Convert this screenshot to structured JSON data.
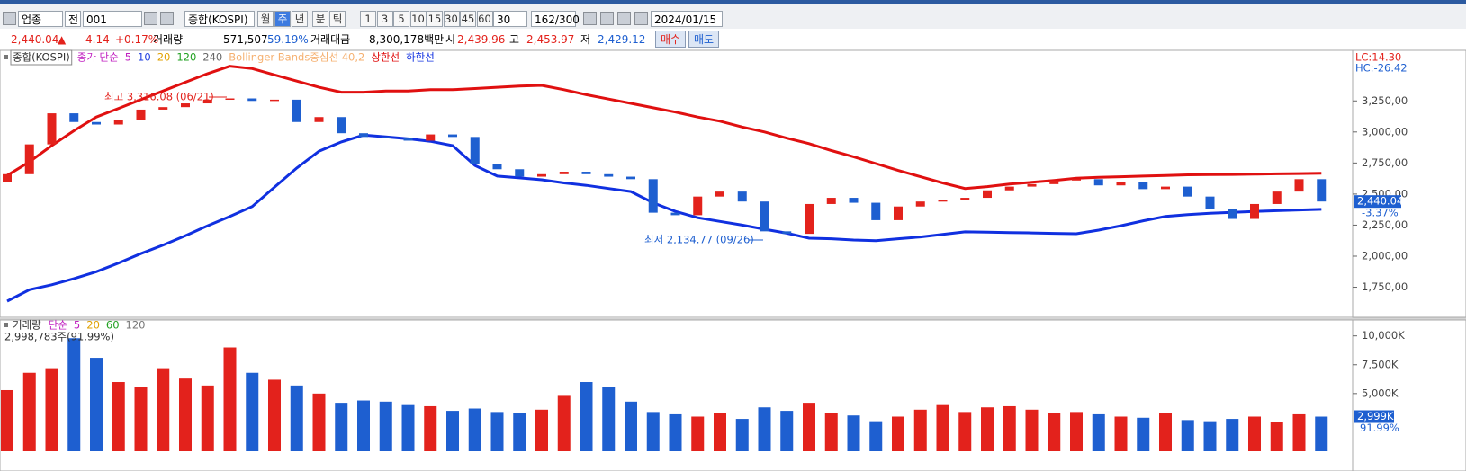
{
  "toolbar": {
    "market": "업종",
    "scope": "전",
    "code": "001",
    "name": "종합(KOSPI)",
    "periods": [
      "월",
      "주",
      "년",
      "분",
      "틱"
    ],
    "intervals": [
      "1",
      "3",
      "5",
      "10",
      "15",
      "30",
      "45",
      "60"
    ],
    "count": "30",
    "range": "162/300",
    "date": "2024/01/15"
  },
  "quote": {
    "price": "2,440.04",
    "arrow": "▲",
    "change": "4.14",
    "change_pct": "+0.17%",
    "volume_label": "거래량",
    "volume": "571,507",
    "volume_ratio": "59.19%",
    "amount_label": "거래대금",
    "amount": "8,300,178백만",
    "open_label": "시",
    "open": "2,439.96",
    "high_label": "고",
    "high": "2,453.97",
    "low_label": "저",
    "low": "2,429.12",
    "buy": "매수",
    "sell": "매도"
  },
  "chart_data": [
    {
      "type": "candlestick",
      "title": "종합(KOSPI)",
      "up_color": "#e3221c",
      "down_color": "#1e5fd0",
      "legend": [
        {
          "name": "종가 단순",
          "color": "#c020c0"
        },
        {
          "name": "5",
          "color": "#c020c0"
        },
        {
          "name": "10",
          "color": "#2040e0"
        },
        {
          "name": "20",
          "color": "#e0a000"
        },
        {
          "name": "120",
          "color": "#20a020"
        },
        {
          "name": "240",
          "color": "#666666"
        },
        {
          "name": "Bollinger Bands중심선 40,2",
          "color": "#f5b070"
        }
      ],
      "open": [
        2600,
        2660,
        2900,
        3150,
        3080,
        3060,
        3100,
        3180,
        3200,
        3230,
        3260,
        3270,
        3250,
        3260,
        3080,
        3120,
        2990,
        2960,
        2950,
        2930,
        2980,
        2960,
        2740,
        2700,
        2640,
        2660,
        2680,
        2660,
        2640,
        2620,
        2350,
        2330,
        2480,
        2520,
        2440,
        2200,
        2180,
        2420,
        2470,
        2430,
        2290,
        2400,
        2440,
        2450,
        2470,
        2530,
        2560,
        2580,
        2610,
        2620,
        2570,
        2600,
        2540,
        2560,
        2480,
        2380,
        2300,
        2420,
        2520,
        2620
      ],
      "close": [
        2660,
        2900,
        3150,
        3080,
        3060,
        3100,
        3180,
        3200,
        3230,
        3260,
        3270,
        3250,
        3260,
        3080,
        3120,
        2990,
        2960,
        2950,
        2930,
        2980,
        2960,
        2740,
        2700,
        2640,
        2660,
        2680,
        2660,
        2640,
        2620,
        2350,
        2330,
        2480,
        2520,
        2440,
        2200,
        2180,
        2420,
        2470,
        2430,
        2290,
        2400,
        2440,
        2450,
        2470,
        2530,
        2560,
        2580,
        2610,
        2620,
        2570,
        2600,
        2540,
        2560,
        2480,
        2380,
        2300,
        2420,
        2520,
        2620,
        2440.04
      ],
      "series": [
        {
          "name": "상한선",
          "color": "#e01010",
          "values": [
            2650,
            2760,
            2890,
            3010,
            3120,
            3190,
            3260,
            3330,
            3400,
            3470,
            3530,
            3510,
            3460,
            3410,
            3360,
            3320,
            3320,
            3330,
            3330,
            3340,
            3340,
            3350,
            3360,
            3370,
            3375,
            3340,
            3300,
            3265,
            3230,
            3195,
            3160,
            3120,
            3087,
            3040,
            3000,
            2950,
            2906,
            2850,
            2800,
            2745,
            2690,
            2640,
            2590,
            2545,
            2560,
            2580,
            2595,
            2610,
            2628,
            2635,
            2640,
            2645,
            2650,
            2655,
            2656,
            2658,
            2660,
            2663,
            2665,
            2667
          ]
        },
        {
          "name": "하한선",
          "color": "#1030e0",
          "values": [
            1638,
            1730,
            1770,
            1820,
            1875,
            1945,
            2020,
            2090,
            2165,
            2245,
            2320,
            2400,
            2555,
            2710,
            2845,
            2920,
            2975,
            2960,
            2945,
            2925,
            2890,
            2730,
            2645,
            2630,
            2615,
            2590,
            2570,
            2545,
            2520,
            2430,
            2360,
            2310,
            2280,
            2250,
            2217,
            2185,
            2145,
            2140,
            2130,
            2125,
            2140,
            2155,
            2175,
            2196,
            2193,
            2190,
            2187,
            2184,
            2181,
            2210,
            2245,
            2285,
            2320,
            2335,
            2346,
            2353,
            2360,
            2366,
            2372,
            2377
          ]
        }
      ],
      "ylim": [
        1515,
        3650
      ],
      "yticks": [
        {
          "value": 3250,
          "label": "3,250,00"
        },
        {
          "value": 3000,
          "label": "3,000,00"
        },
        {
          "value": 2750,
          "label": "2,750,00"
        },
        {
          "value": 2500,
          "label": "2,500,00"
        },
        {
          "value": 2250,
          "label": "2,250,00"
        },
        {
          "value": 2000,
          "label": "2,000,00"
        },
        {
          "value": 1750,
          "label": "1,750,00"
        }
      ],
      "annotations": {
        "high": "최고 3,316.08 (06/21)",
        "low": "최저 2,134.77 (09/26)"
      },
      "lc": "LC:14.30",
      "hc": "HC:-26.42",
      "last_label": "2,440.04",
      "last_change": "-3.37%"
    },
    {
      "type": "bar",
      "title": "거래량",
      "subtitle": "2,998,783주(91.99%)",
      "legend": [
        {
          "name": "단순",
          "color": "#c020c0"
        },
        {
          "name": "5",
          "color": "#c020c0"
        },
        {
          "name": "20",
          "color": "#e0a000"
        },
        {
          "name": "60",
          "color": "#20a020"
        },
        {
          "name": "120",
          "color": "#777777"
        }
      ],
      "values": [
        5300,
        6800,
        7200,
        9800,
        8100,
        6000,
        5600,
        7200,
        6300,
        5700,
        9000,
        6800,
        6200,
        5700,
        5000,
        4200,
        4400,
        4300,
        4000,
        3900,
        3500,
        3700,
        3400,
        3300,
        3600,
        4800,
        6000,
        5600,
        4300,
        3400,
        3200,
        3000,
        3300,
        2800,
        3800,
        3500,
        4200,
        3300,
        3100,
        2600,
        3000,
        3600,
        4000,
        3400,
        3800,
        3900,
        3600,
        3300,
        3400,
        3200,
        3000,
        2900,
        3300,
        2700,
        2600,
        2800,
        3000,
        2500,
        3200,
        2998.783
      ],
      "ylim": [
        0,
        11300
      ],
      "yticks": [
        {
          "value": 10000,
          "label": "10,000K"
        },
        {
          "value": 7500,
          "label": "7,500K"
        },
        {
          "value": 5000,
          "label": "5,000K"
        }
      ],
      "last_label": "2,999K",
      "last_ratio": "91.99%"
    }
  ]
}
